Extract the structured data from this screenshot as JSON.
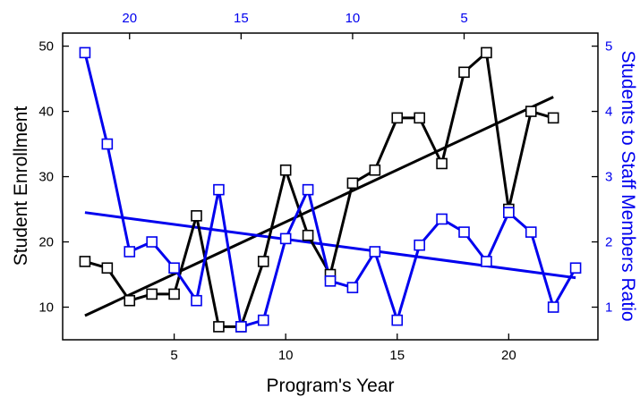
{
  "chart_data": {
    "type": "line",
    "xlabel": "Program's Year",
    "ylabel": "Student Enrollment",
    "y2label": "Students to Staff Members Ratio",
    "xlim": [
      0,
      24
    ],
    "ylim": [
      5,
      52
    ],
    "y2lim": [
      0.5,
      5.2
    ],
    "x_ticks": [
      5,
      10,
      15,
      20
    ],
    "y_ticks": [
      10,
      20,
      30,
      40,
      50
    ],
    "y2_ticks": [
      1,
      2,
      3,
      4,
      5
    ],
    "x2_ticks": [
      20,
      15,
      10,
      5
    ],
    "x2_tick_positions": [
      3,
      8,
      13,
      18
    ],
    "grid": false,
    "colors": {
      "enrollment": "#000000",
      "ratio": "#0000ee"
    },
    "marker": "open-square",
    "series": [
      {
        "key": "enrollment",
        "axis": "left",
        "x": [
          1,
          2,
          3,
          4,
          5,
          6,
          7,
          8,
          9,
          10,
          11,
          12,
          13,
          14,
          15,
          16,
          17,
          18,
          19,
          20,
          21,
          22
        ],
        "values": [
          17,
          16,
          11,
          12,
          12,
          24,
          7,
          7,
          17,
          31,
          21,
          15,
          29,
          31,
          39,
          39,
          32,
          46,
          49,
          25,
          40,
          39
        ],
        "trend": {
          "x": [
            1,
            22
          ],
          "y": [
            8.7,
            42.2
          ]
        }
      },
      {
        "key": "ratio",
        "axis": "right",
        "x": [
          1,
          2,
          3,
          4,
          5,
          6,
          7,
          8,
          9,
          10,
          11,
          12,
          13,
          14,
          15,
          16,
          17,
          18,
          19,
          20,
          21,
          22,
          23
        ],
        "values": [
          4.9,
          3.5,
          1.85,
          2.0,
          1.6,
          1.1,
          2.8,
          0.7,
          0.8,
          2.05,
          2.8,
          1.4,
          1.3,
          1.85,
          0.8,
          1.95,
          2.35,
          2.15,
          1.7,
          2.45,
          2.15,
          1.0,
          1.6
        ],
        "trend": {
          "x": [
            1,
            23
          ],
          "y": [
            2.45,
            1.45
          ]
        }
      }
    ]
  }
}
